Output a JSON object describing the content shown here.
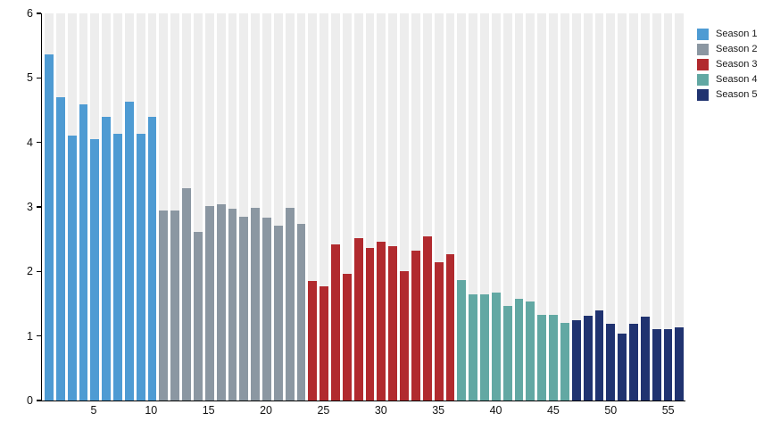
{
  "chart_data": {
    "type": "bar",
    "title": "",
    "xlabel": "",
    "ylabel": "",
    "x_unit": "episode number (1-56, consecutive across seasons)",
    "ylim": [
      0,
      6
    ],
    "y_ticks": [
      0,
      1,
      2,
      3,
      4,
      5,
      6
    ],
    "x_ticks": [
      5,
      10,
      15,
      20,
      25,
      30,
      35,
      40,
      45,
      50,
      55
    ],
    "grid": "no horizontal gridlines; full-height light-gray background band behind each bar slot",
    "plot_band_color": "#ededed",
    "axis_color": "#000000",
    "label_color": "#111111",
    "legend_position": "top-right-outside",
    "series": [
      {
        "name": "Season 1",
        "color": "#4e9bd3",
        "start_episode": 1,
        "values": [
          5.37,
          4.7,
          4.1,
          4.59,
          4.05,
          4.39,
          4.13,
          4.63,
          4.14,
          4.4
        ]
      },
      {
        "name": "Season 2",
        "color": "#8b97a2",
        "start_episode": 11,
        "values": [
          2.95,
          2.95,
          3.29,
          2.62,
          3.01,
          3.04,
          2.97,
          2.85,
          2.99,
          2.83,
          2.71,
          2.98,
          2.74
        ]
      },
      {
        "name": "Season 3",
        "color": "#b12a2e",
        "start_episode": 24,
        "values": [
          1.85,
          1.77,
          2.42,
          1.96,
          2.52,
          2.36,
          2.46,
          2.39,
          2.0,
          2.32,
          2.55,
          2.14,
          2.27
        ]
      },
      {
        "name": "Season 4",
        "color": "#62a8a3",
        "start_episode": 37,
        "values": [
          1.87,
          1.65,
          1.65,
          1.67,
          1.46,
          1.57,
          1.53,
          1.33,
          1.33,
          1.2
        ]
      },
      {
        "name": "Season 5",
        "color": "#203370",
        "start_episode": 47,
        "values": [
          1.24,
          1.31,
          1.39,
          1.19,
          1.04,
          1.19,
          1.3,
          1.1,
          1.1,
          1.13
        ]
      }
    ]
  }
}
